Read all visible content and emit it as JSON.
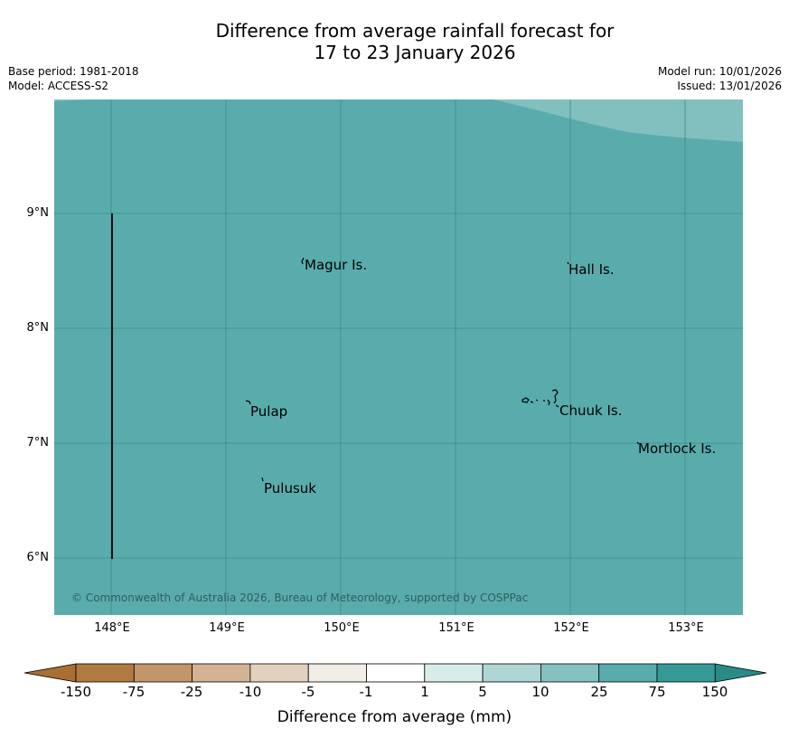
{
  "title": {
    "line1": "Difference from average rainfall forecast for",
    "line2": "17 to 23 January 2026"
  },
  "meta": {
    "base_period": "Base period: 1981-2018",
    "model": "Model: ACCESS-S2",
    "model_run": "Model run: 10/01/2026",
    "issued": "Issued: 13/01/2026"
  },
  "map": {
    "fill_color": "#5aacac",
    "upper_region_color": "#82bfbf",
    "gridline_color": "#3e8a8a",
    "lat_labels": [
      "9°N",
      "8°N",
      "7°N",
      "6°N"
    ],
    "lon_labels": [
      "148°E",
      "149°E",
      "150°E",
      "151°E",
      "152°E",
      "153°E"
    ],
    "places": {
      "magur": "Magur Is.",
      "hall": "Hall Is.",
      "pulap": "Pulap",
      "chuuk": "Chuuk Is.",
      "mortlock": "Mortlock Is.",
      "pulusuk": "Pulusuk"
    },
    "copyright": "© Commonwealth of Australia 2026, Bureau of Meteorology, supported by COSPPac"
  },
  "colorbar": {
    "title": "Difference from average (mm)",
    "ticks": [
      "-150",
      "-75",
      "-25",
      "-10",
      "-5",
      "-1",
      "1",
      "5",
      "10",
      "25",
      "75",
      "150"
    ],
    "low_extend_color": "#a86f32",
    "high_extend_color": "#2a8a86",
    "colors": [
      "#b07a42",
      "#c3956a",
      "#d3b394",
      "#e3d1bf",
      "#f1eee8",
      "#ffffff",
      "#d8ecea",
      "#aed6d5",
      "#84c1c0",
      "#5aacac",
      "#359a97"
    ]
  }
}
